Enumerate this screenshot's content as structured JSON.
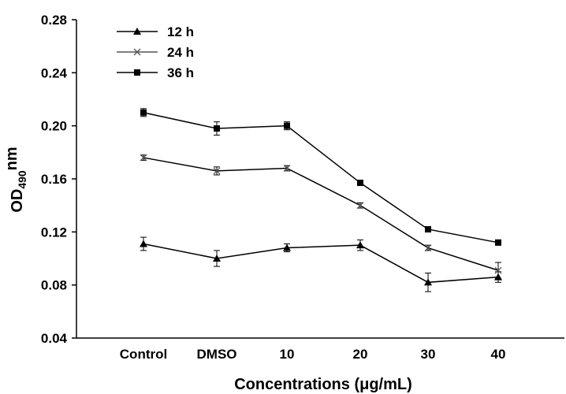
{
  "chart_data": {
    "type": "line",
    "categories": [
      "Control",
      "DMSO",
      "10",
      "20",
      "30",
      "40"
    ],
    "ylim": [
      0.04,
      0.28
    ],
    "yticks": [
      "0.04",
      "0.08",
      "0.12",
      "0.16",
      "0.20",
      "0.24",
      "0.28"
    ],
    "xlabel": "Concentrations (μg/mL)",
    "ylabel": {
      "base": "OD",
      "sub": "490",
      "sup": "nm"
    },
    "legend_position": "top-left",
    "grid": false,
    "series": [
      {
        "name": "12 h",
        "marker": "triangle",
        "values": [
          0.111,
          0.1,
          0.108,
          0.11,
          0.082,
          0.086
        ],
        "errors": [
          0.005,
          0.006,
          0.003,
          0.004,
          0.007,
          0.004
        ]
      },
      {
        "name": "24 h",
        "marker": "x",
        "values": [
          0.176,
          0.166,
          0.168,
          0.14,
          0.108,
          0.091
        ],
        "errors": [
          0.002,
          0.003,
          0.002,
          0.002,
          0.002,
          0.006
        ]
      },
      {
        "name": "36 h",
        "marker": "square",
        "values": [
          0.21,
          0.198,
          0.2,
          0.157,
          0.122,
          0.112
        ],
        "errors": [
          0.003,
          0.005,
          0.003,
          0.001,
          0.002,
          0.002
        ]
      }
    ]
  }
}
